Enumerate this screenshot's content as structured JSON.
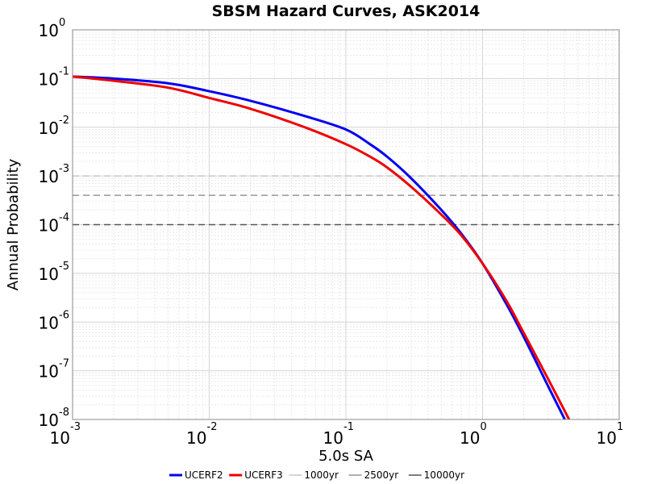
{
  "chart_data": {
    "type": "line",
    "title": "SBSM Hazard Curves, ASK2014",
    "xlabel": "5.0s SA",
    "ylabel": "Annual Probability",
    "x_scale": "log",
    "y_scale": "log",
    "xlim": [
      0.001,
      10
    ],
    "ylim": [
      1e-08,
      1
    ],
    "x_ticks": [
      {
        "base": "10",
        "exp": "-3",
        "value": 0.001
      },
      {
        "base": "10",
        "exp": "-2",
        "value": 0.01
      },
      {
        "base": "10",
        "exp": "-1",
        "value": 0.1
      },
      {
        "base": "10",
        "exp": "0",
        "value": 1
      },
      {
        "base": "10",
        "exp": "1",
        "value": 10
      }
    ],
    "y_ticks": [
      {
        "base": "10",
        "exp": "0",
        "value": 1
      },
      {
        "base": "10",
        "exp": "-1",
        "value": 0.1
      },
      {
        "base": "10",
        "exp": "-2",
        "value": 0.01
      },
      {
        "base": "10",
        "exp": "-3",
        "value": 0.001
      },
      {
        "base": "10",
        "exp": "-4",
        "value": 0.0001
      },
      {
        "base": "10",
        "exp": "-5",
        "value": 1e-05
      },
      {
        "base": "10",
        "exp": "-6",
        "value": 1e-06
      },
      {
        "base": "10",
        "exp": "-7",
        "value": 1e-07
      },
      {
        "base": "10",
        "exp": "-8",
        "value": 1e-08
      }
    ],
    "grid": true,
    "legend_position": "bottom",
    "series": [
      {
        "name": "UCERF2",
        "color": "#0000ee",
        "x": [
          0.001,
          0.002,
          0.005,
          0.01,
          0.02,
          0.05,
          0.1,
          0.15,
          0.2,
          0.3,
          0.5,
          0.7,
          1.0,
          1.5,
          2.0,
          3.0,
          4.0
        ],
        "y": [
          0.11,
          0.1,
          0.08,
          0.055,
          0.035,
          0.017,
          0.009,
          0.0045,
          0.0025,
          0.0009,
          0.0002,
          6.5e-05,
          1.6e-05,
          2.3e-06,
          5e-07,
          5e-08,
          1e-08
        ]
      },
      {
        "name": "UCERF3",
        "color": "#ee0000",
        "x": [
          0.001,
          0.002,
          0.005,
          0.01,
          0.02,
          0.05,
          0.1,
          0.15,
          0.2,
          0.3,
          0.5,
          0.7,
          1.0,
          1.5,
          2.0,
          3.0,
          4.3
        ],
        "y": [
          0.11,
          0.09,
          0.065,
          0.04,
          0.024,
          0.01,
          0.0045,
          0.0025,
          0.0015,
          0.0006,
          0.00016,
          6e-05,
          1.6e-05,
          2.7e-06,
          6e-07,
          7e-08,
          1e-08
        ]
      }
    ],
    "reference_lines": [
      {
        "name": "1000yr",
        "y": 0.001,
        "color": "#c8c8c8"
      },
      {
        "name": "2500yr",
        "y": 0.0004,
        "color": "#969696"
      },
      {
        "name": "10000yr",
        "y": 0.0001,
        "color": "#555555"
      }
    ]
  }
}
